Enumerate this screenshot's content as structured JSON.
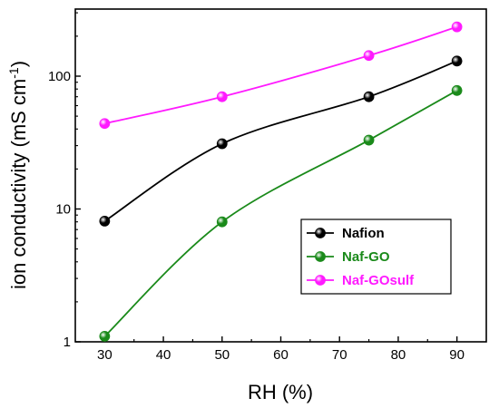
{
  "chart_data": {
    "type": "line",
    "xlabel": "RH (%)",
    "ylabel_main": "ion conductivity (mS cm",
    "ylabel_sup": "-1",
    "ylabel_close": ")",
    "xlim": [
      25,
      95
    ],
    "ylim": [
      1,
      320
    ],
    "yscale": "log",
    "x_ticks": [
      30,
      40,
      50,
      60,
      70,
      80,
      90
    ],
    "x_tick_labels": [
      "30",
      "40",
      "50",
      "60",
      "70",
      "80",
      "90"
    ],
    "y_ticks": [
      1,
      10,
      100
    ],
    "y_tick_labels": [
      "1",
      "10",
      "100"
    ],
    "grid": false,
    "legend_position": "lower-right",
    "series": [
      {
        "name": "Nafion",
        "color": "#000000",
        "x": [
          30,
          50,
          75,
          90
        ],
        "y": [
          8.1,
          31,
          70,
          130
        ]
      },
      {
        "name": "Naf-GO",
        "color": "#1a8a1a",
        "x": [
          30,
          50,
          75,
          90
        ],
        "y": [
          1.1,
          8.0,
          33,
          78
        ]
      },
      {
        "name": "Naf-GOsulf",
        "color": "#ff1aff",
        "x": [
          30,
          50,
          75,
          90
        ],
        "y": [
          44,
          70,
          143,
          235
        ]
      }
    ]
  }
}
